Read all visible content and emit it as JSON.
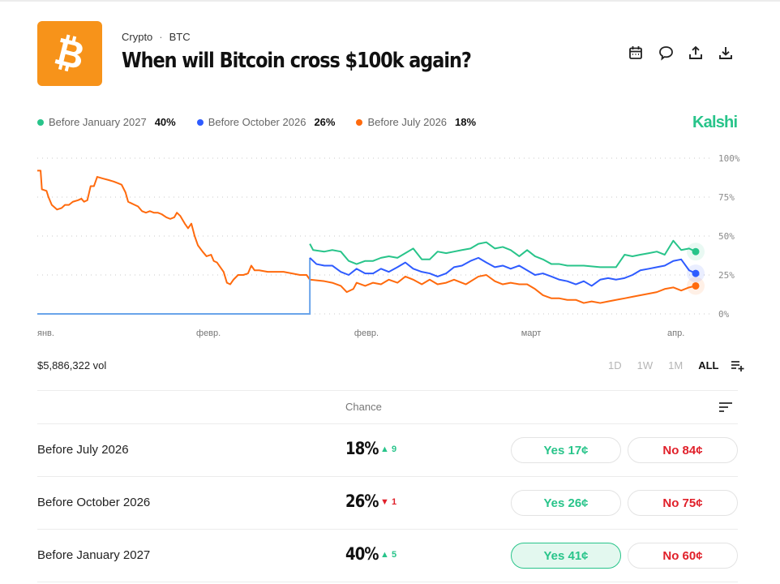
{
  "header": {
    "category": "Crypto",
    "separator": "·",
    "ticker": "BTC",
    "title": "When will Bitcoin cross $100k again?",
    "logo_icon": "bitcoin-icon",
    "logo_color": "#f7931a",
    "actions": [
      {
        "name": "calendar-icon"
      },
      {
        "name": "comment-icon"
      },
      {
        "name": "share-icon"
      },
      {
        "name": "download-icon"
      }
    ]
  },
  "brand": "Kalshi",
  "legend": [
    {
      "label": "Before January 2027",
      "value": "40%",
      "color": "#28c48a"
    },
    {
      "label": "Before October 2026",
      "value": "26%",
      "color": "#2e5bff"
    },
    {
      "label": "Before July 2026",
      "value": "18%",
      "color": "#ff6a0d"
    }
  ],
  "chart_data": {
    "type": "line",
    "title": "",
    "xlabel": "",
    "ylabel": "",
    "ylim": [
      0,
      100
    ],
    "xlim": [
      0,
      100
    ],
    "y_ticks": [
      "100%",
      "75%",
      "50%",
      "25%",
      "0%"
    ],
    "y_tick_values": [
      100,
      75,
      50,
      25,
      0
    ],
    "x_tick_labels": [
      "янв.",
      "февр.",
      "февр.",
      "март",
      "апр."
    ],
    "x_tick_values": [
      1,
      26,
      50,
      75,
      97
    ],
    "grid": true,
    "legend_position": "top-left",
    "series": [
      {
        "name": "Before July 2026",
        "color": "#ff6a0d",
        "points": [
          [
            0,
            92
          ],
          [
            0.5,
            92
          ],
          [
            0.7,
            80
          ],
          [
            1.4,
            79
          ],
          [
            1.7,
            75
          ],
          [
            2.2,
            70
          ],
          [
            3,
            67
          ],
          [
            3.7,
            68
          ],
          [
            4.2,
            70
          ],
          [
            4.8,
            70
          ],
          [
            5.4,
            72
          ],
          [
            6.2,
            73
          ],
          [
            6.7,
            74
          ],
          [
            7.1,
            72
          ],
          [
            7.6,
            73
          ],
          [
            8.1,
            82
          ],
          [
            8.6,
            82
          ],
          [
            9.1,
            88
          ],
          [
            9.9,
            87
          ],
          [
            10.8,
            86
          ],
          [
            11.6,
            85
          ],
          [
            12.2,
            84
          ],
          [
            12.8,
            83
          ],
          [
            13.4,
            78
          ],
          [
            13.8,
            72
          ],
          [
            14.3,
            71
          ],
          [
            14.8,
            70
          ],
          [
            15.3,
            69
          ],
          [
            15.9,
            66
          ],
          [
            16.5,
            65
          ],
          [
            17.1,
            66
          ],
          [
            17.7,
            65
          ],
          [
            18.3,
            65
          ],
          [
            18.9,
            64
          ],
          [
            19.6,
            62
          ],
          [
            20.2,
            61
          ],
          [
            20.8,
            62
          ],
          [
            21.2,
            65
          ],
          [
            21.7,
            63
          ],
          [
            22.4,
            58
          ],
          [
            22.9,
            55
          ],
          [
            23.4,
            58
          ],
          [
            23.9,
            50
          ],
          [
            24.4,
            44
          ],
          [
            25.1,
            40
          ],
          [
            25.7,
            37
          ],
          [
            26.4,
            38
          ],
          [
            26.8,
            34
          ],
          [
            27.3,
            33
          ],
          [
            27.8,
            30
          ],
          [
            28.3,
            27
          ],
          [
            28.8,
            20
          ],
          [
            29.3,
            19
          ],
          [
            29.8,
            22
          ],
          [
            30.5,
            25
          ],
          [
            31.3,
            25
          ],
          [
            32,
            26
          ],
          [
            32.5,
            31
          ],
          [
            33,
            28
          ],
          [
            33.7,
            28
          ],
          [
            35,
            27
          ],
          [
            36.2,
            27
          ],
          [
            37.4,
            27
          ],
          [
            38.7,
            26
          ],
          [
            39.9,
            25
          ],
          [
            40.9,
            25
          ],
          [
            41.4,
            22
          ],
          [
            43.6,
            21
          ],
          [
            44.8,
            20
          ],
          [
            46.1,
            18
          ],
          [
            47,
            14
          ],
          [
            48,
            16
          ],
          [
            48.5,
            20
          ],
          [
            49.8,
            18
          ],
          [
            51,
            20
          ],
          [
            52.2,
            19
          ],
          [
            53.4,
            22
          ],
          [
            54.7,
            20
          ],
          [
            55.9,
            24
          ],
          [
            57.1,
            22
          ],
          [
            58.4,
            19
          ],
          [
            59.6,
            22
          ],
          [
            60.8,
            19
          ],
          [
            62.1,
            20
          ],
          [
            63.3,
            22
          ],
          [
            65.1,
            19
          ],
          [
            67,
            24
          ],
          [
            68.2,
            25
          ],
          [
            69.5,
            21
          ],
          [
            70.7,
            19
          ],
          [
            71.9,
            20
          ],
          [
            73.2,
            19
          ],
          [
            74.4,
            19
          ],
          [
            75.6,
            16
          ],
          [
            76.8,
            12
          ],
          [
            78.1,
            10
          ],
          [
            79.3,
            10
          ],
          [
            80.5,
            9
          ],
          [
            81.8,
            9
          ],
          [
            83,
            7
          ],
          [
            84.2,
            8
          ],
          [
            85.5,
            7
          ],
          [
            86.7,
            8
          ],
          [
            87.9,
            9
          ],
          [
            89.2,
            10
          ],
          [
            90.4,
            11
          ],
          [
            91.6,
            12
          ],
          [
            92.9,
            13
          ],
          [
            94.1,
            14
          ],
          [
            95.3,
            16
          ],
          [
            96.6,
            17
          ],
          [
            97.8,
            15
          ],
          [
            99,
            17
          ],
          [
            100,
            18
          ]
        ]
      },
      {
        "name": "Before October 2026",
        "color": "#2e5bff",
        "points": [
          [
            0,
            0
          ],
          [
            41.4,
            0
          ],
          [
            41.4,
            36
          ],
          [
            42.4,
            32
          ],
          [
            43.6,
            31
          ],
          [
            44.8,
            31
          ],
          [
            46.1,
            27
          ],
          [
            47.3,
            25
          ],
          [
            48.5,
            29
          ],
          [
            49.8,
            26
          ],
          [
            51,
            26
          ],
          [
            52.2,
            29
          ],
          [
            53.4,
            27
          ],
          [
            54.7,
            30
          ],
          [
            55.9,
            33
          ],
          [
            57.1,
            29
          ],
          [
            58.4,
            27
          ],
          [
            59.6,
            26
          ],
          [
            60.8,
            24
          ],
          [
            62.1,
            26
          ],
          [
            63.3,
            30
          ],
          [
            64.5,
            31
          ],
          [
            65.8,
            34
          ],
          [
            67,
            36
          ],
          [
            68.2,
            33
          ],
          [
            69.5,
            30
          ],
          [
            70.7,
            31
          ],
          [
            71.9,
            29
          ],
          [
            73.2,
            31
          ],
          [
            74.4,
            28
          ],
          [
            75.6,
            25
          ],
          [
            76.8,
            26
          ],
          [
            78.1,
            24
          ],
          [
            79.3,
            22
          ],
          [
            80.5,
            21
          ],
          [
            81.8,
            19
          ],
          [
            83,
            21
          ],
          [
            84.2,
            18
          ],
          [
            85.5,
            22
          ],
          [
            86.7,
            23
          ],
          [
            87.9,
            22
          ],
          [
            89.2,
            23
          ],
          [
            90.4,
            25
          ],
          [
            91.6,
            28
          ],
          [
            92.9,
            29
          ],
          [
            94.1,
            30
          ],
          [
            95.3,
            31
          ],
          [
            96.6,
            34
          ],
          [
            97.8,
            35
          ],
          [
            99,
            28
          ],
          [
            100,
            26
          ]
        ]
      },
      {
        "name": "Before January 2027",
        "color": "#28c48a",
        "points": [
          [
            41.4,
            45
          ],
          [
            41.9,
            41
          ],
          [
            43.6,
            40
          ],
          [
            44.8,
            41
          ],
          [
            46.1,
            40
          ],
          [
            47.3,
            34
          ],
          [
            48.5,
            32
          ],
          [
            49.8,
            34
          ],
          [
            51,
            34
          ],
          [
            52.2,
            36
          ],
          [
            53.4,
            37
          ],
          [
            54.7,
            36
          ],
          [
            55.9,
            39
          ],
          [
            57.1,
            42
          ],
          [
            58.4,
            35
          ],
          [
            59.6,
            35
          ],
          [
            60.8,
            40
          ],
          [
            62.1,
            39
          ],
          [
            63.3,
            40
          ],
          [
            64.5,
            41
          ],
          [
            65.8,
            42
          ],
          [
            67,
            45
          ],
          [
            68.2,
            46
          ],
          [
            69.5,
            42
          ],
          [
            70.7,
            43
          ],
          [
            71.9,
            41
          ],
          [
            73.2,
            37
          ],
          [
            74.4,
            41
          ],
          [
            75.6,
            37
          ],
          [
            76.8,
            35
          ],
          [
            78.1,
            32
          ],
          [
            79.3,
            32
          ],
          [
            80.5,
            31
          ],
          [
            83,
            31
          ],
          [
            85.5,
            30
          ],
          [
            86.7,
            30
          ],
          [
            87.9,
            30
          ],
          [
            89.2,
            38
          ],
          [
            90.4,
            37
          ],
          [
            91.6,
            38
          ],
          [
            92.9,
            39
          ],
          [
            94.1,
            40
          ],
          [
            95.3,
            38
          ],
          [
            96.6,
            47
          ],
          [
            97.8,
            41
          ],
          [
            99,
            42
          ],
          [
            100,
            40
          ]
        ]
      }
    ]
  },
  "volume": "$5,886,322 vol",
  "ranges": [
    {
      "label": "1D",
      "active": false
    },
    {
      "label": "1W",
      "active": false
    },
    {
      "label": "1M",
      "active": false
    },
    {
      "label": "ALL",
      "active": true
    }
  ],
  "table": {
    "chance_header": "Chance",
    "rows": [
      {
        "label": "Before July 2026",
        "chance": "18%",
        "delta": "9",
        "direction": "up",
        "yes": "Yes 17¢",
        "no": "No 84¢",
        "yes_selected": false
      },
      {
        "label": "Before October 2026",
        "chance": "26%",
        "delta": "1",
        "direction": "down",
        "yes": "Yes 26¢",
        "no": "No 75¢",
        "yes_selected": false
      },
      {
        "label": "Before January 2027",
        "chance": "40%",
        "delta": "5",
        "direction": "up",
        "yes": "Yes 41¢",
        "no": "No 60¢",
        "yes_selected": true
      }
    ]
  }
}
